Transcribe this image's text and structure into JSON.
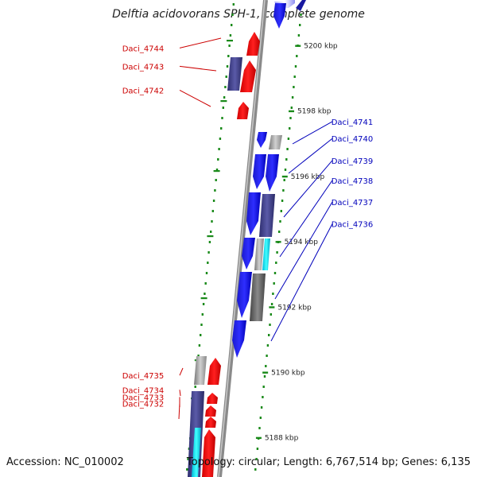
{
  "title": "Delftia acidovorans SPH-1, complete genome",
  "footer": {
    "accession": "Accession: NC_010002",
    "topology": "Topology: circular; Length: 6,767,514 bp; Genes: 6,135"
  },
  "colors": {
    "forward_gene": "#ff0000",
    "reverse_gene": "#0000ee",
    "reverse_label": "#0000bb",
    "forward_label": "#cc0000",
    "purple_feature": "#4a4a9a",
    "gray_feature": "#a8a8a8",
    "cyan_feature": "#00e0f0",
    "ticks": "#1a8a1a",
    "backbone": "#8a8a8a"
  },
  "scale": {
    "unit": "kbp",
    "kbp_range": [
      5186.8,
      5201.4
    ],
    "ticks": [
      5200,
      5198,
      5196,
      5194,
      5192,
      5190,
      5188
    ]
  },
  "genes_left": [
    {
      "label": "Daci_4744",
      "kbp": 5199.93
    },
    {
      "label": "Daci_4743",
      "kbp": 5199.37
    },
    {
      "label": "Daci_4742",
      "kbp": 5198.64
    },
    {
      "label": "Daci_4735",
      "kbp": 5189.91
    },
    {
      "label": "Daci_4734",
      "kbp": 5189.47
    },
    {
      "label": "Daci_4733",
      "kbp": 5189.25
    },
    {
      "label": "Daci_4732",
      "kbp": 5189.05
    }
  ],
  "genes_right": [
    {
      "label": "Daci_4741",
      "kbp": 5197.68
    },
    {
      "label": "Daci_4740",
      "kbp": 5197.16
    },
    {
      "label": "Daci_4739",
      "kbp": 5196.49
    },
    {
      "label": "Daci_4738",
      "kbp": 5195.88
    },
    {
      "label": "Daci_4737",
      "kbp": 5195.22
    },
    {
      "label": "Daci_4736",
      "kbp": 5194.55
    }
  ]
}
